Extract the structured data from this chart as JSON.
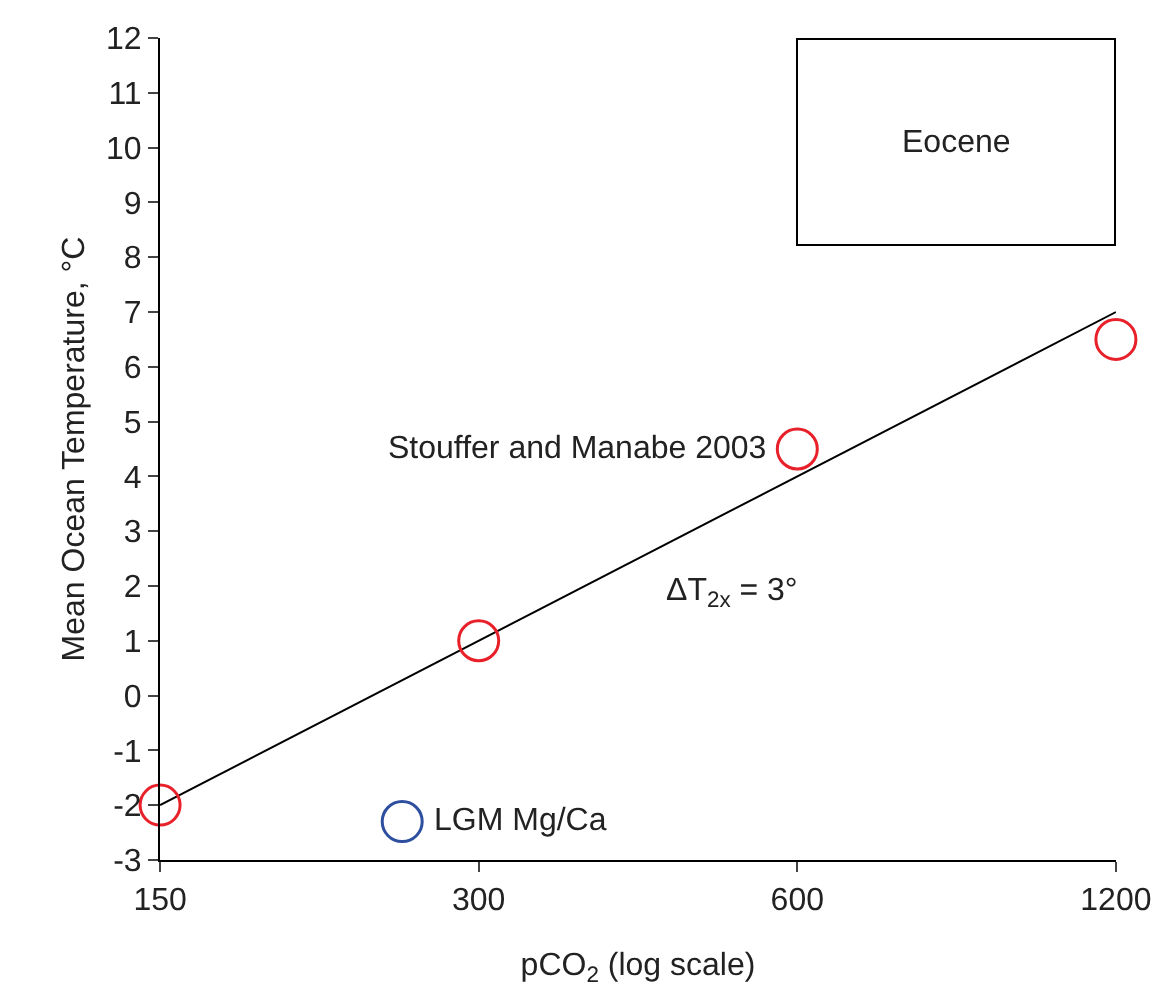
{
  "chart_data": {
    "type": "scatter",
    "xlabel": "pCO$_{2}$ (log scale)",
    "ylabel": "Mean Ocean Temperature, °C",
    "log": "x",
    "xlim": [
      150,
      1200
    ],
    "xticks": [
      150,
      300,
      600,
      1200
    ],
    "ylim": [
      -3,
      12
    ],
    "yticks": [
      -3,
      -2,
      -1,
      0,
      1,
      2,
      3,
      4,
      5,
      6,
      7,
      8,
      9,
      10,
      11,
      12
    ],
    "grid": false,
    "legend": false,
    "marker": "circle",
    "series": [
      {
        "type": "line",
        "color": "#000000",
        "x": [
          150,
          1200
        ],
        "values": [
          -2,
          7
        ],
        "marker": "none",
        "line_style": "solid"
      },
      {
        "name": "Stouffer and Manabe 2003",
        "color": "#e8202a",
        "x": [
          150,
          300,
          600,
          1200
        ],
        "values": [
          -2,
          1,
          4.5,
          6.5
        ]
      },
      {
        "name": "LGM Mg/Ca",
        "color": "#2e4fa0",
        "x": [
          254
        ],
        "values": [
          -2.3
        ]
      }
    ],
    "annotations": [
      "ΔT$_{2x}$ = 3°",
      "Eocene"
    ]
  }
}
